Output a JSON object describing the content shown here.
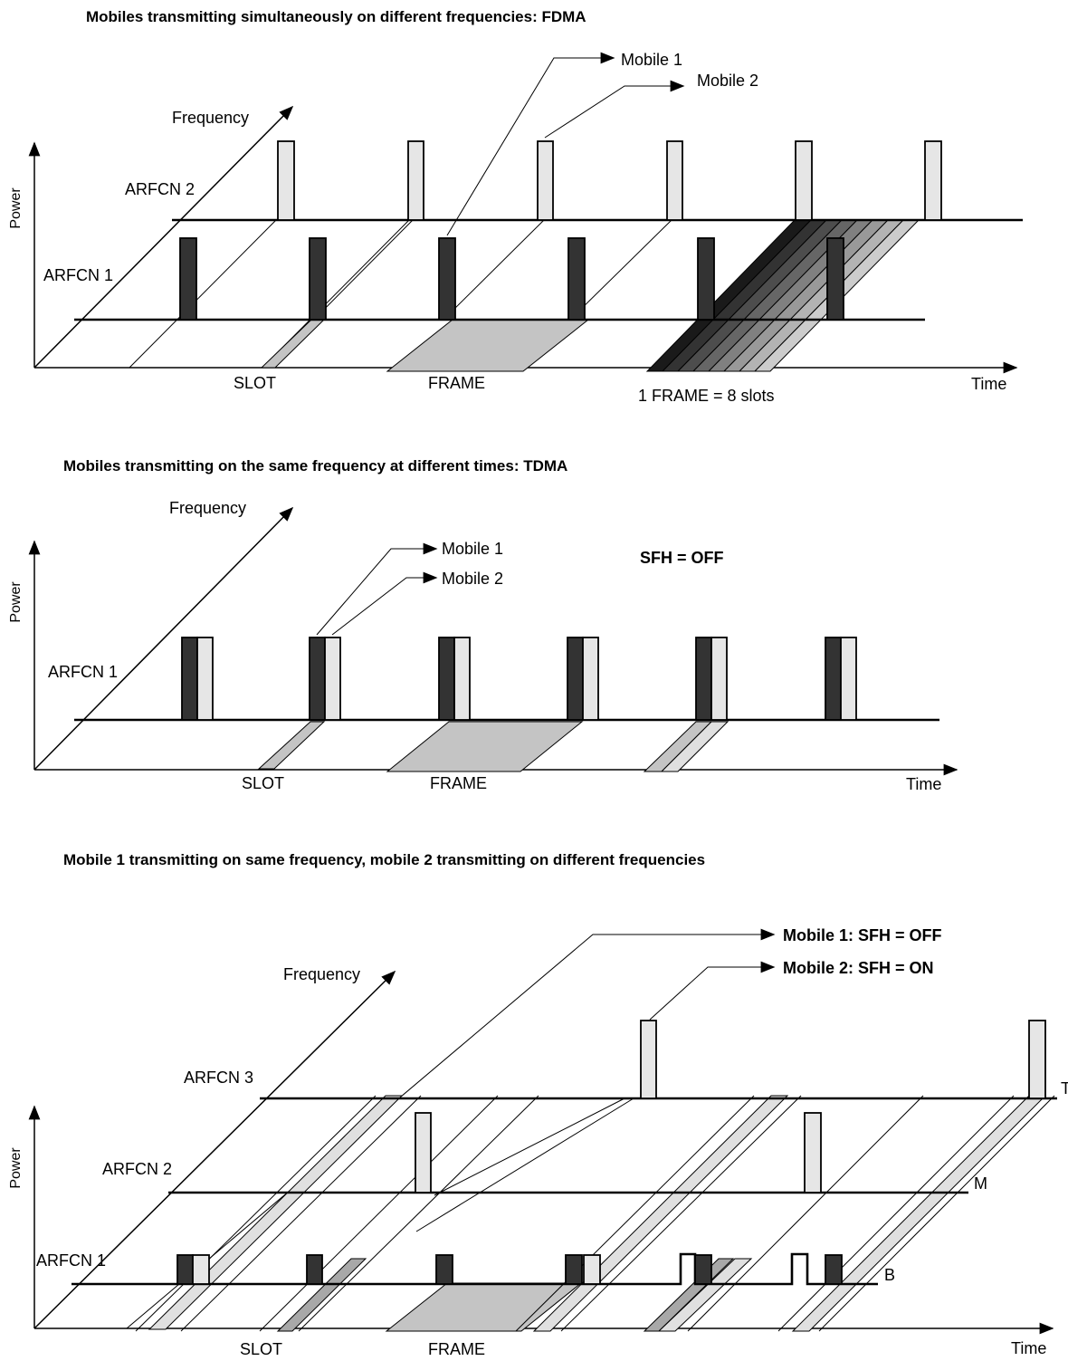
{
  "diagram1": {
    "title": "Mobiles transmitting simultaneously on different frequencies:  FDMA",
    "power_label": "Power",
    "frequency_label": "Frequency",
    "time_label": "Time",
    "arfcn2_label": "ARFCN 2",
    "arfcn1_label": "ARFCN 1",
    "mobile1_label": "Mobile 1",
    "mobile2_label": "Mobile 2",
    "slot_label": "SLOT",
    "frame_label": "FRAME",
    "frame_note": "1 FRAME = 8 slots"
  },
  "diagram2": {
    "title": "Mobiles transmitting on the same frequency at different times:  TDMA",
    "power_label": "Power",
    "frequency_label": "Frequency",
    "time_label": "Time",
    "arfcn1_label": "ARFCN 1",
    "mobile1_label": "Mobile 1",
    "mobile2_label": "Mobile 2",
    "sfh_label": "SFH = OFF",
    "slot_label": "SLOT",
    "frame_label": "FRAME"
  },
  "diagram3": {
    "title": "Mobile 1 transmitting on same frequency,    mobile 2 transmitting on different frequencies",
    "power_label": "Power",
    "frequency_label": "Frequency",
    "time_label": "Time",
    "arfcn3_label": "ARFCN 3",
    "arfcn2_label": "ARFCN 2",
    "arfcn1_label": "ARFCN 1",
    "mobile1_label": "Mobile 1: SFH = OFF",
    "mobile2_label": "Mobile 2: SFH = ON",
    "slot_label": "SLOT",
    "frame_label": "FRAME",
    "t_label": "T",
    "m_label": "M",
    "b_label": "B"
  },
  "colors": {
    "mobile1": "#333333",
    "mobile2": "#e6e6e6",
    "slot_shade": "#c4c4c4"
  }
}
